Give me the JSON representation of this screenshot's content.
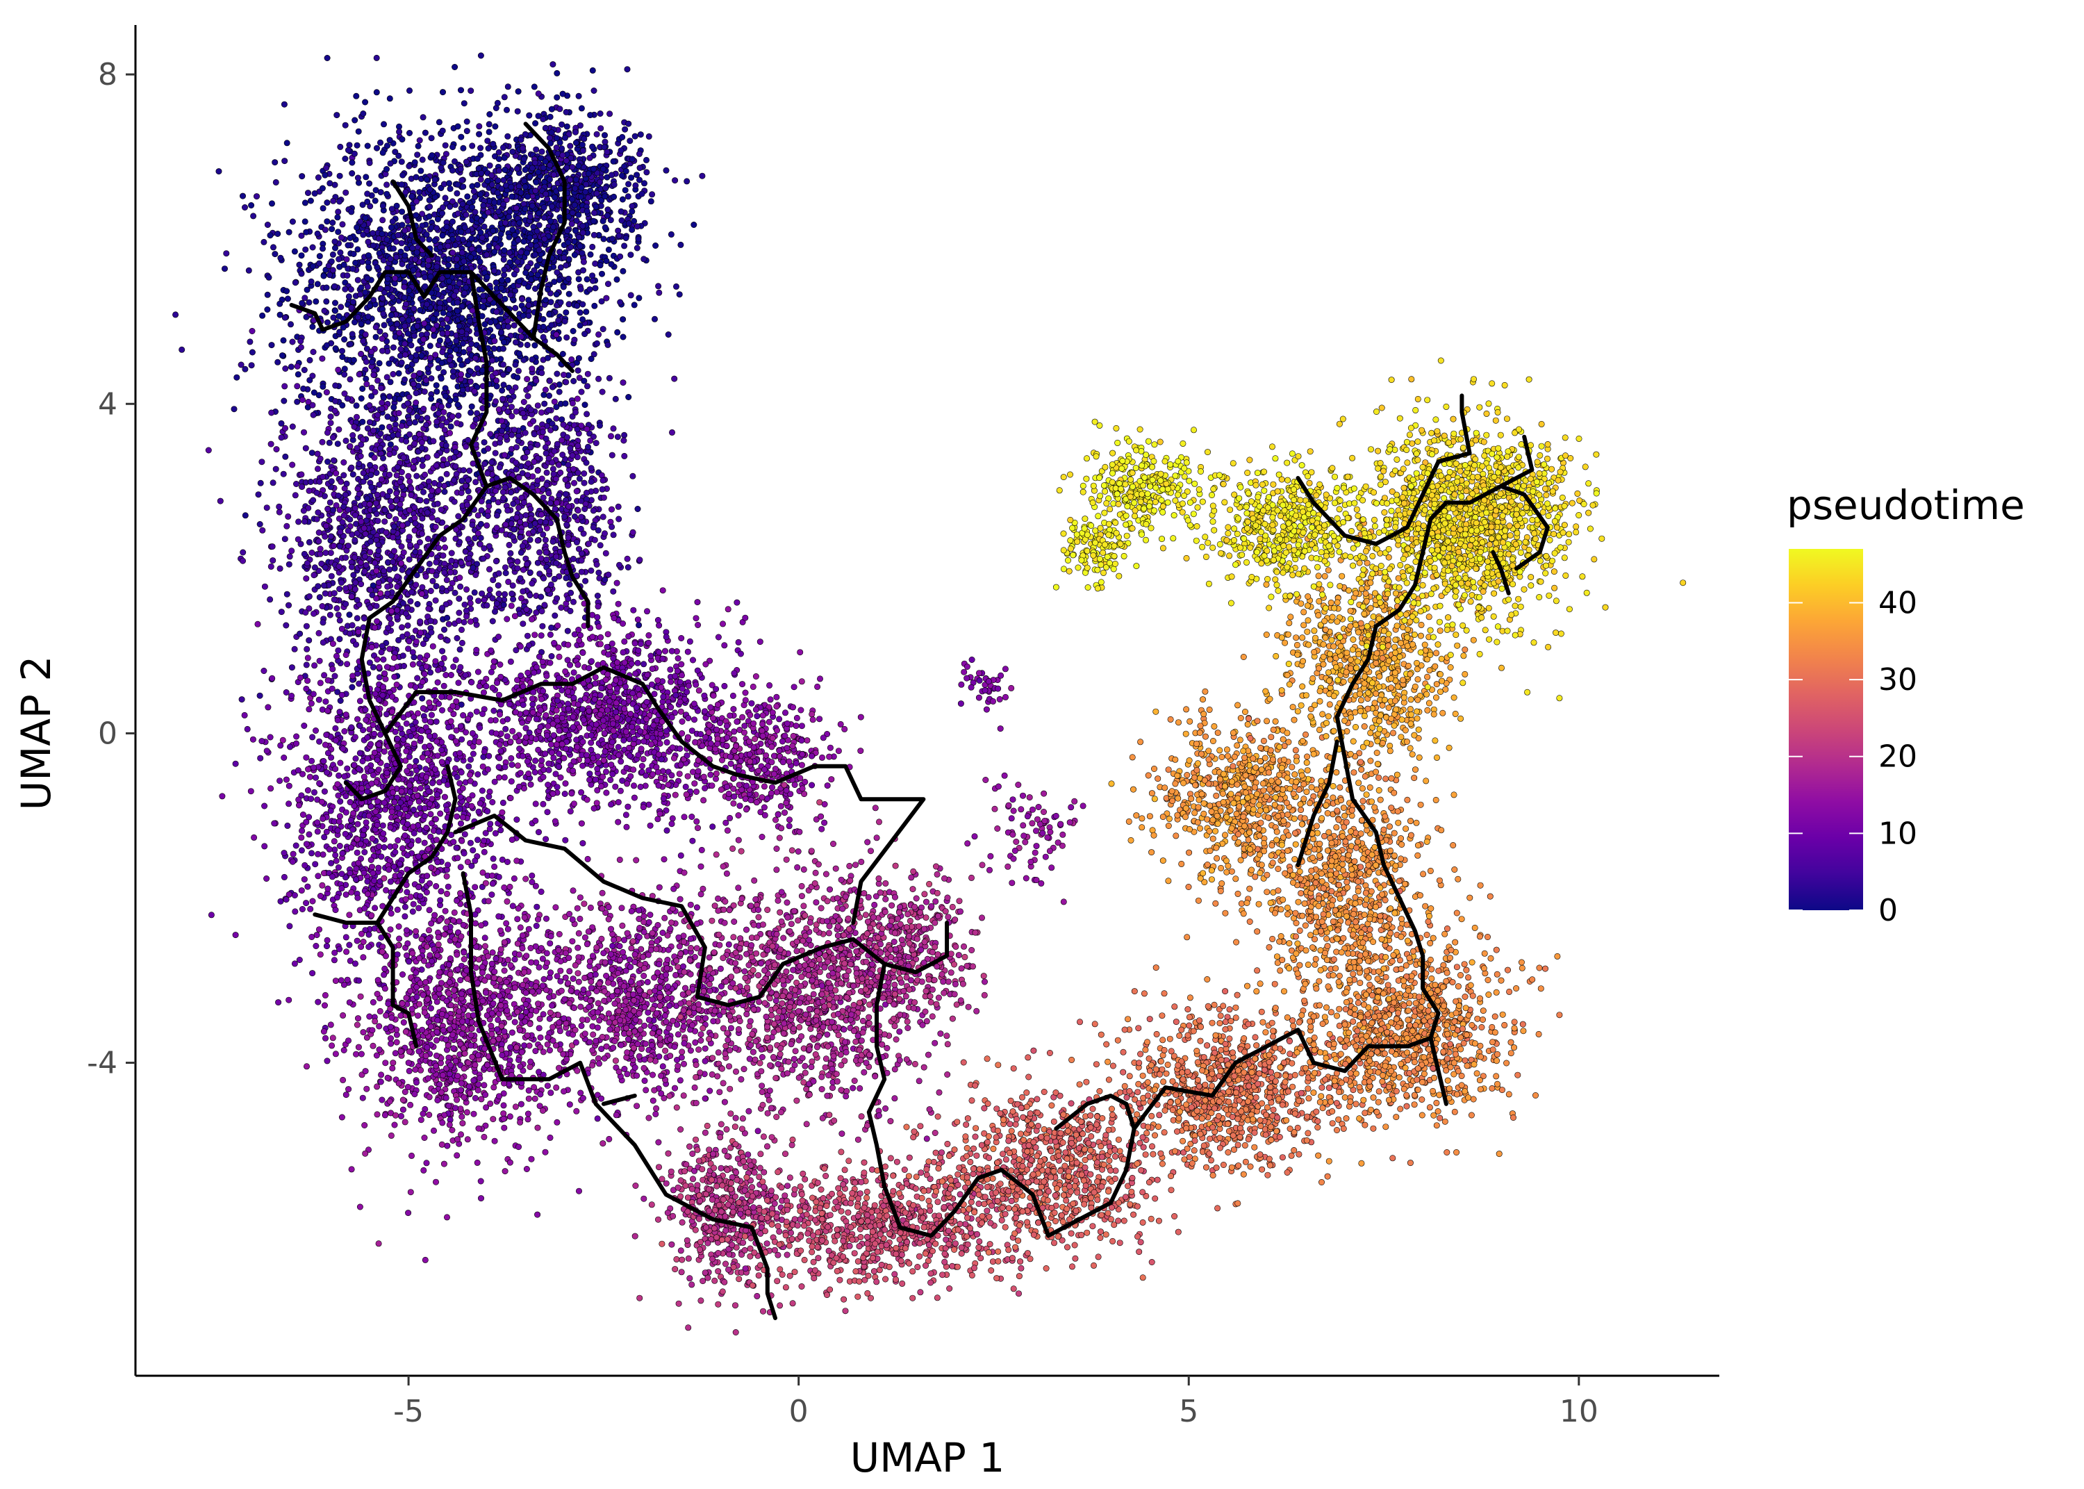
{
  "chart_data": {
    "type": "scatter",
    "title": "",
    "xlabel": "UMAP 1",
    "ylabel": "UMAP 2",
    "xlim": [
      -8.5,
      11.8
    ],
    "ylim": [
      -7.8,
      8.6
    ],
    "x_ticks": [
      -5,
      0,
      5,
      10
    ],
    "x_tick_labels": [
      "-5",
      "0",
      "5",
      "10"
    ],
    "y_ticks": [
      -4,
      0,
      4,
      8
    ],
    "y_tick_labels": [
      "-4",
      "0",
      "4",
      "8"
    ],
    "grid": false,
    "color_scale": {
      "name": "pseudotime",
      "palette": "plasma",
      "range": [
        0,
        47
      ],
      "ticks": [
        0,
        10,
        20,
        30,
        40
      ],
      "tick_labels": [
        "0",
        "10",
        "20",
        "30",
        "40"
      ],
      "stops": [
        "#0d0887",
        "#41049d",
        "#6a00a8",
        "#8f0da4",
        "#b12a90",
        "#cc4778",
        "#e16462",
        "#f2844b",
        "#fca636",
        "#fcce25",
        "#f0f921"
      ]
    },
    "legend": {
      "position": "right",
      "title": "pseudotime"
    },
    "point_color": "#000000",
    "line_color": "#000000",
    "cell_regions": [
      {
        "center": [
          -4.5,
          5.5
        ],
        "spread": [
          1.7,
          1.5
        ],
        "pseudotime": 1,
        "n": 2200
      },
      {
        "center": [
          -3.0,
          6.6
        ],
        "spread": [
          0.9,
          0.8
        ],
        "pseudotime": 1,
        "n": 700
      },
      {
        "center": [
          -5.3,
          2.5
        ],
        "spread": [
          1.1,
          1.7
        ],
        "pseudotime": 5,
        "n": 1300
      },
      {
        "center": [
          -3.3,
          2.8
        ],
        "spread": [
          0.9,
          1.3
        ],
        "pseudotime": 5,
        "n": 800
      },
      {
        "center": [
          -5.2,
          -0.8
        ],
        "spread": [
          1.2,
          1.5
        ],
        "pseudotime": 10,
        "n": 1300
      },
      {
        "center": [
          -2.5,
          0.2
        ],
        "spread": [
          1.4,
          0.9
        ],
        "pseudotime": 11,
        "n": 1200
      },
      {
        "center": [
          -0.5,
          -0.3
        ],
        "spread": [
          0.8,
          0.6
        ],
        "pseudotime": 14,
        "n": 400
      },
      {
        "center": [
          -4.3,
          -3.5
        ],
        "spread": [
          1.2,
          1.3
        ],
        "pseudotime": 14,
        "n": 1200
      },
      {
        "center": [
          -2.0,
          -3.2
        ],
        "spread": [
          1.0,
          1.0
        ],
        "pseudotime": 15,
        "n": 800
      },
      {
        "center": [
          0.2,
          -3.1
        ],
        "spread": [
          1.3,
          1.2
        ],
        "pseudotime": 18,
        "n": 1200
      },
      {
        "center": [
          -0.9,
          -5.8
        ],
        "spread": [
          0.7,
          0.8
        ],
        "pseudotime": 20,
        "n": 500
      },
      {
        "center": [
          1.4,
          -2.6
        ],
        "spread": [
          0.7,
          0.7
        ],
        "pseudotime": 19,
        "n": 300
      },
      {
        "center": [
          1.0,
          -6.0
        ],
        "spread": [
          1.3,
          0.6
        ],
        "pseudotime": 24,
        "n": 700
      },
      {
        "center": [
          3.2,
          -5.3
        ],
        "spread": [
          1.2,
          0.8
        ],
        "pseudotime": 28,
        "n": 800
      },
      {
        "center": [
          5.5,
          -4.3
        ],
        "spread": [
          1.1,
          0.8
        ],
        "pseudotime": 31,
        "n": 900
      },
      {
        "center": [
          7.8,
          -3.6
        ],
        "spread": [
          1.1,
          0.9
        ],
        "pseudotime": 34,
        "n": 900
      },
      {
        "center": [
          7.0,
          -1.8
        ],
        "spread": [
          0.9,
          1.2
        ],
        "pseudotime": 35,
        "n": 800
      },
      {
        "center": [
          5.6,
          -0.8
        ],
        "spread": [
          0.9,
          0.8
        ],
        "pseudotime": 36,
        "n": 600
      },
      {
        "center": [
          7.3,
          0.9
        ],
        "spread": [
          0.9,
          1.0
        ],
        "pseudotime": 38,
        "n": 700
      },
      {
        "center": [
          8.6,
          2.6
        ],
        "spread": [
          1.1,
          1.0
        ],
        "pseudotime": 44,
        "n": 1400
      },
      {
        "center": [
          6.2,
          2.5
        ],
        "spread": [
          0.8,
          0.6
        ],
        "pseudotime": 45,
        "n": 500
      },
      {
        "center": [
          4.4,
          3.0
        ],
        "spread": [
          0.6,
          0.5
        ],
        "pseudotime": 46,
        "n": 300
      },
      {
        "center": [
          3.8,
          2.2
        ],
        "spread": [
          0.4,
          0.3
        ],
        "pseudotime": 46,
        "n": 120
      },
      {
        "center": [
          2.4,
          0.6
        ],
        "spread": [
          0.3,
          0.3
        ],
        "pseudotime": 12,
        "n": 40
      },
      {
        "center": [
          3.0,
          -1.2
        ],
        "spread": [
          0.5,
          0.5
        ],
        "pseudotime": 15,
        "n": 80
      }
    ],
    "trajectory_segments": [
      [
        [
          -6.5,
          5.2
        ],
        [
          -6.2,
          5.1
        ],
        [
          -6.1,
          4.9
        ],
        [
          -5.8,
          5.0
        ],
        [
          -5.5,
          5.3
        ],
        [
          -5.3,
          5.6
        ],
        [
          -5.0,
          5.6
        ],
        [
          -4.8,
          5.3
        ],
        [
          -4.6,
          5.6
        ],
        [
          -4.2,
          5.6
        ],
        [
          -3.8,
          5.2
        ],
        [
          -3.4,
          4.8
        ],
        [
          -3.1,
          4.6
        ],
        [
          -2.9,
          4.4
        ]
      ],
      [
        [
          -5.2,
          6.7
        ],
        [
          -5.0,
          6.4
        ],
        [
          -4.9,
          6.0
        ],
        [
          -4.7,
          5.8
        ]
      ],
      [
        [
          -4.2,
          5.6
        ],
        [
          -4.1,
          5.0
        ],
        [
          -4.0,
          4.5
        ],
        [
          -4.0,
          3.9
        ],
        [
          -4.2,
          3.5
        ],
        [
          -4.0,
          3.0
        ],
        [
          -4.3,
          2.6
        ],
        [
          -4.6,
          2.4
        ],
        [
          -4.9,
          2.0
        ],
        [
          -5.2,
          1.6
        ],
        [
          -5.5,
          1.4
        ],
        [
          -5.6,
          0.9
        ],
        [
          -5.5,
          0.4
        ],
        [
          -5.3,
          0.0
        ],
        [
          -5.1,
          -0.4
        ],
        [
          -5.3,
          -0.7
        ],
        [
          -5.6,
          -0.8
        ],
        [
          -5.8,
          -0.6
        ]
      ],
      [
        [
          -3.4,
          4.8
        ],
        [
          -3.3,
          5.4
        ],
        [
          -3.2,
          5.8
        ],
        [
          -3.0,
          6.2
        ],
        [
          -3.0,
          6.7
        ],
        [
          -3.2,
          7.1
        ],
        [
          -3.5,
          7.4
        ]
      ],
      [
        [
          -4.0,
          3.0
        ],
        [
          -3.7,
          3.1
        ],
        [
          -3.4,
          2.9
        ],
        [
          -3.1,
          2.6
        ],
        [
          -3.0,
          2.2
        ],
        [
          -2.9,
          1.9
        ],
        [
          -2.7,
          1.6
        ],
        [
          -2.7,
          1.3
        ]
      ],
      [
        [
          -5.3,
          0.0
        ],
        [
          -4.9,
          0.5
        ],
        [
          -4.4,
          0.5
        ],
        [
          -3.8,
          0.4
        ],
        [
          -3.3,
          0.6
        ],
        [
          -2.9,
          0.6
        ],
        [
          -2.5,
          0.8
        ],
        [
          -2.0,
          0.6
        ],
        [
          -1.8,
          0.3
        ],
        [
          -1.5,
          -0.1
        ],
        [
          -1.1,
          -0.4
        ],
        [
          -0.8,
          -0.5
        ],
        [
          -0.3,
          -0.6
        ],
        [
          0.2,
          -0.4
        ],
        [
          0.6,
          -0.4
        ],
        [
          0.8,
          -0.8
        ],
        [
          1.6,
          -0.8
        ],
        [
          1.2,
          -1.3
        ],
        [
          0.8,
          -1.8
        ],
        [
          0.7,
          -2.3
        ]
      ],
      [
        [
          -4.5,
          -0.4
        ],
        [
          -4.4,
          -0.8
        ],
        [
          -4.5,
          -1.2
        ],
        [
          -4.7,
          -1.5
        ],
        [
          -5.0,
          -1.7
        ],
        [
          -5.2,
          -2.0
        ],
        [
          -5.4,
          -2.3
        ],
        [
          -5.8,
          -2.3
        ],
        [
          -6.2,
          -2.2
        ]
      ],
      [
        [
          -5.4,
          -2.3
        ],
        [
          -5.2,
          -2.6
        ],
        [
          -5.2,
          -3.0
        ],
        [
          -5.2,
          -3.3
        ],
        [
          -5.0,
          -3.4
        ],
        [
          -4.9,
          -3.8
        ]
      ],
      [
        [
          -4.4,
          -1.2
        ],
        [
          -3.9,
          -1.0
        ],
        [
          -3.5,
          -1.3
        ],
        [
          -3.0,
          -1.4
        ],
        [
          -2.5,
          -1.8
        ],
        [
          -2.0,
          -2.0
        ],
        [
          -1.5,
          -2.1
        ],
        [
          -1.2,
          -2.6
        ],
        [
          -1.3,
          -3.2
        ],
        [
          -0.9,
          -3.3
        ],
        [
          -0.5,
          -3.2
        ],
        [
          -0.2,
          -2.8
        ],
        [
          0.3,
          -2.6
        ],
        [
          0.7,
          -2.5
        ],
        [
          1.1,
          -2.8
        ],
        [
          1.5,
          -2.9
        ],
        [
          1.9,
          -2.7
        ],
        [
          1.9,
          -2.3
        ]
      ],
      [
        [
          -4.3,
          -1.7
        ],
        [
          -4.2,
          -2.2
        ],
        [
          -4.2,
          -2.9
        ],
        [
          -4.1,
          -3.5
        ],
        [
          -3.8,
          -4.2
        ],
        [
          -3.2,
          -4.2
        ],
        [
          -2.8,
          -4.0
        ],
        [
          -2.6,
          -4.5
        ],
        [
          -2.4,
          -4.7
        ],
        [
          -2.1,
          -5.0
        ],
        [
          -1.7,
          -5.6
        ],
        [
          -1.1,
          -5.9
        ],
        [
          -0.6,
          -6.0
        ],
        [
          -0.4,
          -6.5
        ],
        [
          -0.4,
          -6.8
        ],
        [
          -0.3,
          -7.1
        ]
      ],
      [
        [
          -2.5,
          -4.5
        ],
        [
          -2.1,
          -4.4
        ]
      ],
      [
        [
          1.1,
          -2.8
        ],
        [
          1.0,
          -3.3
        ],
        [
          1.0,
          -3.8
        ],
        [
          1.1,
          -4.2
        ],
        [
          0.9,
          -4.6
        ],
        [
          1.0,
          -5.0
        ],
        [
          1.1,
          -5.5
        ],
        [
          1.3,
          -6.0
        ],
        [
          1.7,
          -6.1
        ],
        [
          2.0,
          -5.8
        ],
        [
          2.3,
          -5.4
        ],
        [
          2.6,
          -5.3
        ],
        [
          3.0,
          -5.6
        ],
        [
          3.2,
          -6.1
        ],
        [
          3.6,
          -5.9
        ],
        [
          4.0,
          -5.7
        ],
        [
          4.2,
          -5.3
        ],
        [
          4.3,
          -4.8
        ],
        [
          4.2,
          -4.5
        ],
        [
          4.0,
          -4.4
        ],
        [
          3.7,
          -4.5
        ],
        [
          3.3,
          -4.8
        ]
      ],
      [
        [
          4.3,
          -4.8
        ],
        [
          4.7,
          -4.3
        ],
        [
          5.3,
          -4.4
        ],
        [
          5.6,
          -4.0
        ],
        [
          6.0,
          -3.8
        ],
        [
          6.4,
          -3.6
        ],
        [
          6.6,
          -4.0
        ],
        [
          7.0,
          -4.1
        ],
        [
          7.3,
          -3.8
        ],
        [
          7.8,
          -3.8
        ],
        [
          8.1,
          -3.7
        ],
        [
          8.2,
          -3.4
        ],
        [
          8.0,
          -3.1
        ],
        [
          8.0,
          -2.7
        ],
        [
          7.9,
          -2.4
        ],
        [
          7.7,
          -2.0
        ],
        [
          7.5,
          -1.6
        ],
        [
          7.4,
          -1.2
        ],
        [
          7.1,
          -0.8
        ],
        [
          7.0,
          -0.3
        ],
        [
          6.9,
          0.2
        ],
        [
          7.1,
          0.6
        ],
        [
          7.3,
          0.9
        ],
        [
          7.4,
          1.3
        ],
        [
          7.7,
          1.5
        ],
        [
          7.9,
          1.8
        ],
        [
          8.0,
          2.2
        ],
        [
          8.1,
          2.6
        ],
        [
          8.3,
          2.8
        ],
        [
          8.6,
          2.8
        ],
        [
          9.0,
          3.0
        ],
        [
          9.3,
          2.9
        ],
        [
          9.6,
          2.5
        ],
        [
          9.5,
          2.2
        ],
        [
          9.2,
          2.0
        ]
      ],
      [
        [
          6.9,
          -0.1
        ],
        [
          6.8,
          -0.6
        ],
        [
          6.6,
          -1.0
        ],
        [
          6.4,
          -1.6
        ]
      ],
      [
        [
          6.4,
          3.1
        ],
        [
          6.6,
          2.8
        ],
        [
          7.0,
          2.4
        ],
        [
          7.4,
          2.3
        ],
        [
          7.8,
          2.5
        ],
        [
          8.0,
          2.9
        ],
        [
          8.2,
          3.3
        ],
        [
          8.6,
          3.4
        ],
        [
          8.5,
          3.9
        ],
        [
          8.5,
          4.1
        ]
      ],
      [
        [
          9.0,
          3.0
        ],
        [
          9.4,
          3.2
        ],
        [
          9.3,
          3.6
        ]
      ],
      [
        [
          8.9,
          2.2
        ],
        [
          9.0,
          2.0
        ],
        [
          9.1,
          1.7
        ]
      ],
      [
        [
          8.1,
          -3.7
        ],
        [
          8.2,
          -4.1
        ],
        [
          8.3,
          -4.5
        ]
      ]
    ]
  }
}
